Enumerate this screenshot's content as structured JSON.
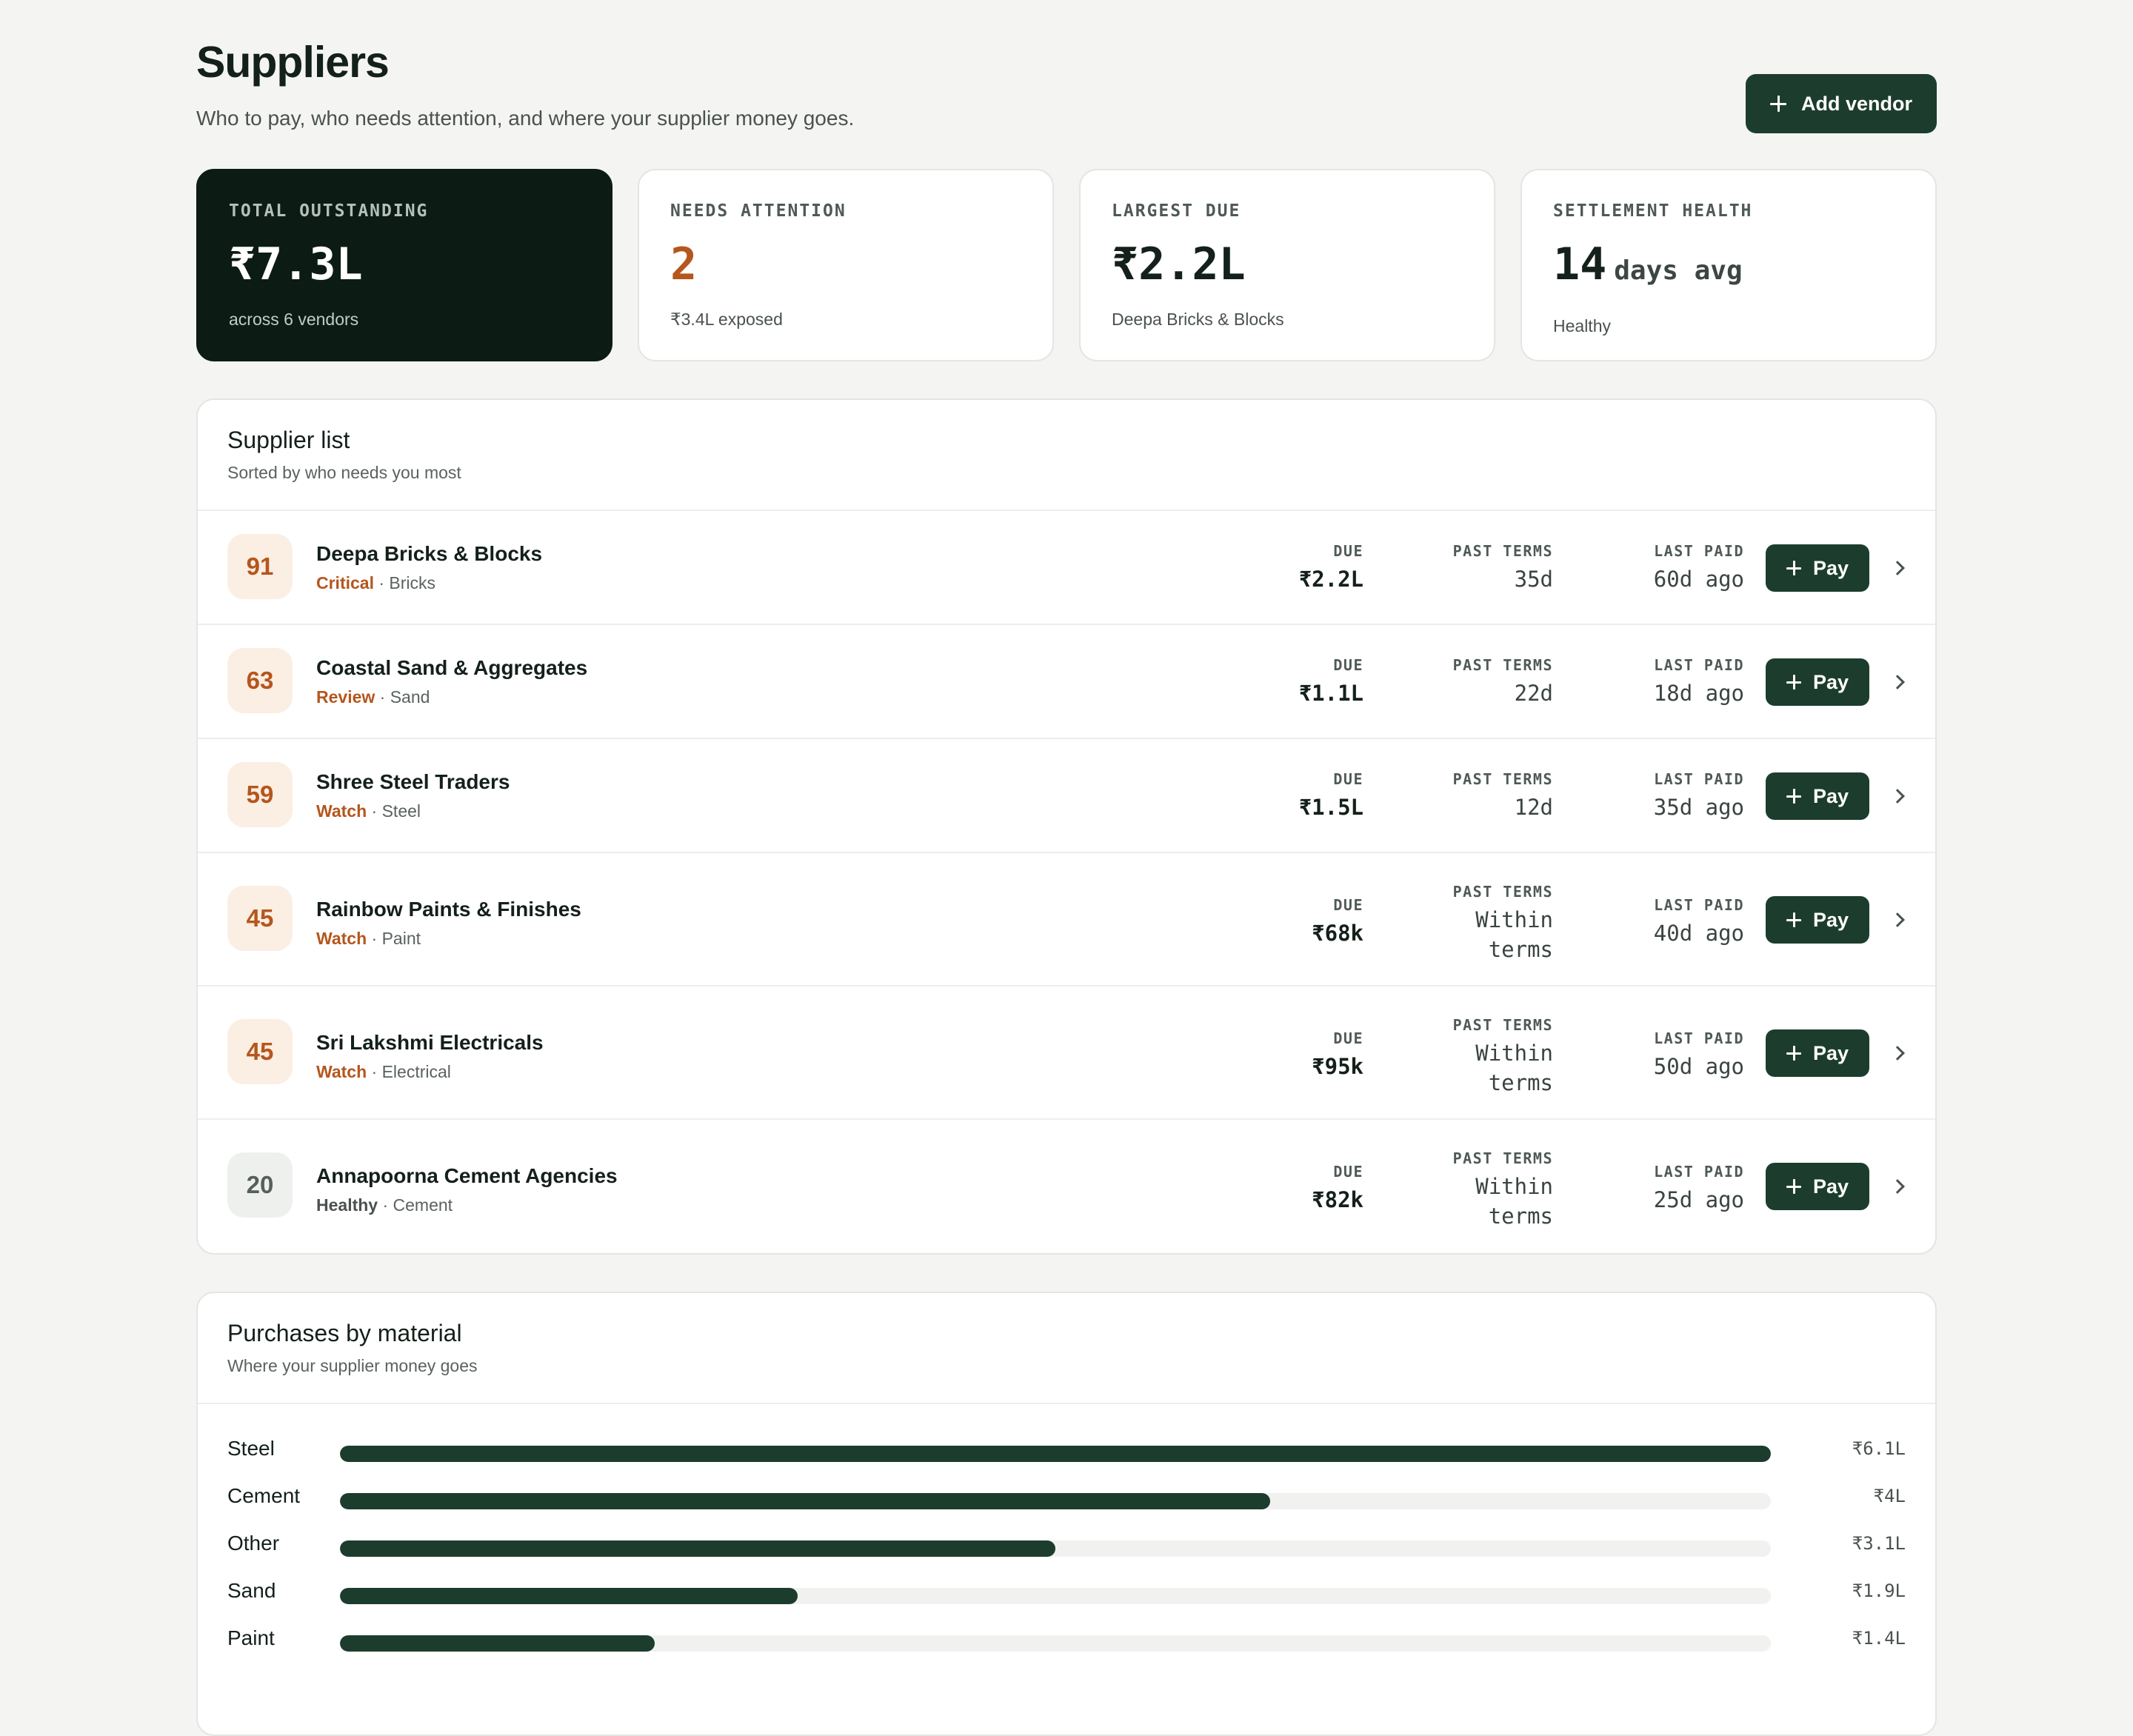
{
  "header": {
    "title": "Suppliers",
    "subtitle": "Who to pay, who needs attention, and where your supplier money goes.",
    "add_vendor_label": "Add vendor"
  },
  "kpis": [
    {
      "label": "TOTAL OUTSTANDING",
      "value": "₹7.3L",
      "sub": "across 6 vendors"
    },
    {
      "label": "NEEDS ATTENTION",
      "value": "2",
      "sub": "₹3.4L exposed"
    },
    {
      "label": "LARGEST DUE",
      "value": "₹2.2L",
      "sub": "Deepa Bricks & Blocks"
    },
    {
      "label": "SETTLEMENT HEALTH",
      "value": "14",
      "unit": "days avg",
      "sub": "Healthy"
    }
  ],
  "supplier_list": {
    "title": "Supplier list",
    "subtitle": "Sorted by who needs you most",
    "col_due": "DUE",
    "col_terms": "PAST TERMS",
    "col_paid": "LAST PAID",
    "pay_label": "Pay",
    "rows": [
      {
        "score": "91",
        "name": "Deepa Bricks & Blocks",
        "status": "Critical",
        "material": "· Bricks",
        "due": "₹2.2L",
        "terms": "35d",
        "paid": "60d ago"
      },
      {
        "score": "63",
        "name": "Coastal Sand & Aggregates",
        "status": "Review",
        "material": "· Sand",
        "due": "₹1.1L",
        "terms": "22d",
        "paid": "18d ago"
      },
      {
        "score": "59",
        "name": "Shree Steel Traders",
        "status": "Watch",
        "material": "· Steel",
        "due": "₹1.5L",
        "terms": "12d",
        "paid": "35d ago"
      },
      {
        "score": "45",
        "name": "Rainbow Paints & Finishes",
        "status": "Watch",
        "material": "· Paint",
        "due": "₹68k",
        "terms_1": "Within",
        "terms_2": "terms",
        "paid": "40d ago"
      },
      {
        "score": "45",
        "name": "Sri Lakshmi Electricals",
        "status": "Watch",
        "material": "· Electrical",
        "due": "₹95k",
        "terms_1": "Within",
        "terms_2": "terms",
        "paid": "50d ago"
      },
      {
        "score": "20",
        "name": "Annapoorna Cement Agencies",
        "status": "Healthy",
        "material": "· Cement",
        "due": "₹82k",
        "terms_1": "Within",
        "terms_2": "terms",
        "paid": "25d ago"
      }
    ]
  },
  "materials": {
    "title": "Purchases by material",
    "subtitle": "Where your supplier money goes",
    "rows": [
      {
        "label": "Steel",
        "value": "₹6.1L",
        "share": 1.0
      },
      {
        "label": "Cement",
        "value": "₹4L",
        "share": 0.65
      },
      {
        "label": "Other",
        "value": "₹3.1L",
        "share": 0.5
      },
      {
        "label": "Sand",
        "value": "₹1.9L",
        "share": 0.32
      },
      {
        "label": "Paint",
        "value": "₹1.4L",
        "share": 0.22
      }
    ]
  },
  "colors": {
    "accent": "#1c3d2e",
    "warning": "#b5561d",
    "dark_card": "#0c1c15"
  }
}
